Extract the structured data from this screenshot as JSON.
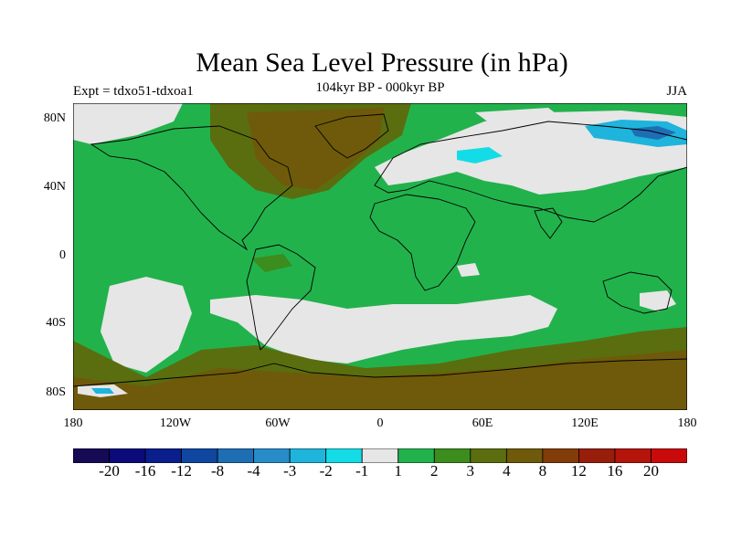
{
  "title": "Mean Sea Level Pressure (in hPa)",
  "subtitle": "104kyr BP - 000kyr BP",
  "left_label": "Expt = tdxo51-tdxoa1",
  "right_label": "JJA",
  "lat_ticks": [
    "80N",
    "40N",
    "0",
    "40S",
    "80S"
  ],
  "lon_ticks": [
    "180",
    "120W",
    "60W",
    "0",
    "60E",
    "120E",
    "180"
  ],
  "colorbar": {
    "colors": [
      "#160a54",
      "#0a0a78",
      "#0a1e8c",
      "#0f46a0",
      "#1e6eb4",
      "#288cc8",
      "#1eb4dc",
      "#14dce6",
      "#e6e6e6",
      "#22b24c",
      "#3c8c1e",
      "#5a6e0f",
      "#6e5a0a",
      "#823c0a",
      "#961e0a",
      "#b4140a",
      "#c80a0a"
    ],
    "labels": [
      "-20",
      "-16",
      "-12",
      "-8",
      "-4",
      "-3",
      "-2",
      "-1",
      "1",
      "2",
      "3",
      "4",
      "8",
      "12",
      "16",
      "20"
    ]
  }
}
